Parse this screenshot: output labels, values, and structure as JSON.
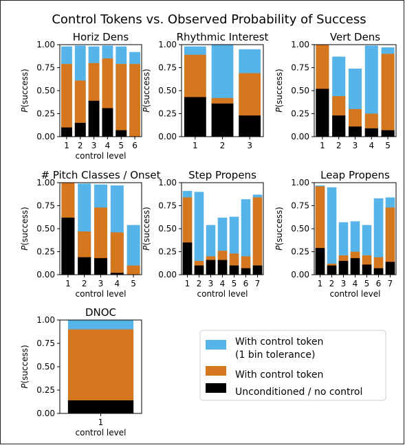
{
  "figure": {
    "title": "Control Tokens vs. Observed Probability of Success"
  },
  "colors": {
    "tolerance": "#56b4e9",
    "token": "#d4771f",
    "unconditioned": "#000000"
  },
  "legend": {
    "placement": "lower-right",
    "entries": [
      {
        "lines": [
          "With control token",
          "(1 bin tolerance)"
        ],
        "color": "#56b4e9"
      },
      {
        "lines": [
          "With control token"
        ],
        "color": "#d4771f"
      },
      {
        "lines": [
          "Unconditioned / no control"
        ],
        "color": "#000000"
      }
    ]
  },
  "chart_data": [
    {
      "type": "bar",
      "stacking": "overlay",
      "title": "Horiz Dens",
      "categories": [
        "1",
        "2",
        "3",
        "4",
        "5",
        "6"
      ],
      "xlabel": "control level",
      "ylabel": "P(success)",
      "ylim": [
        0,
        1
      ],
      "yticks": [
        "0.00",
        "0.25",
        "0.50",
        "0.75",
        "1.00"
      ],
      "series": [
        {
          "name": "With control token (1 bin tolerance)",
          "values": [
            0.98,
            0.99,
            0.98,
            0.99,
            0.98,
            0.92
          ]
        },
        {
          "name": "With control token",
          "values": [
            0.79,
            0.61,
            0.8,
            0.85,
            0.79,
            0.79
          ]
        },
        {
          "name": "Unconditioned / no control",
          "values": [
            0.1,
            0.15,
            0.39,
            0.31,
            0.07,
            0.0
          ]
        }
      ]
    },
    {
      "type": "bar",
      "stacking": "overlay",
      "title": "Rhythmic Interest",
      "categories": [
        "1",
        "2",
        "3"
      ],
      "xlabel": "",
      "ylabel": "P(success)",
      "ylim": [
        0,
        1
      ],
      "yticks": [
        "0.00",
        "0.25",
        "0.50",
        "0.75",
        "1.00"
      ],
      "series": [
        {
          "name": "With control token (1 bin tolerance)",
          "values": [
            0.98,
            1.0,
            0.95
          ]
        },
        {
          "name": "With control token",
          "values": [
            0.89,
            0.42,
            0.69
          ]
        },
        {
          "name": "Unconditioned / no control",
          "values": [
            0.43,
            0.36,
            0.23
          ]
        }
      ]
    },
    {
      "type": "bar",
      "stacking": "overlay",
      "title": "Vert Dens",
      "categories": [
        "1",
        "2",
        "3",
        "4",
        "5"
      ],
      "xlabel": "",
      "ylabel": "P(success)",
      "ylim": [
        0,
        1
      ],
      "yticks": [
        "0.00",
        "0.25",
        "0.50",
        "0.75",
        "1.00"
      ],
      "series": [
        {
          "name": "With control token (1 bin tolerance)",
          "values": [
            1.0,
            0.87,
            0.74,
            0.99,
            0.97
          ]
        },
        {
          "name": "With control token",
          "values": [
            1.0,
            0.44,
            0.3,
            0.25,
            0.9
          ]
        },
        {
          "name": "Unconditioned / no control",
          "values": [
            0.52,
            0.23,
            0.11,
            0.09,
            0.07
          ]
        }
      ]
    },
    {
      "type": "bar",
      "stacking": "overlay",
      "title": "# Pitch Classes / Onset",
      "categories": [
        "1",
        "2",
        "3",
        "4",
        "5"
      ],
      "xlabel": "control level",
      "ylabel": "P(success)",
      "ylim": [
        0,
        1
      ],
      "yticks": [
        "0.00",
        "0.25",
        "0.50",
        "0.75",
        "1.00"
      ],
      "series": [
        {
          "name": "With control token (1 bin tolerance)",
          "values": [
            1.0,
            0.99,
            0.98,
            0.97,
            0.54
          ]
        },
        {
          "name": "With control token",
          "values": [
            1.0,
            0.47,
            0.73,
            0.46,
            0.1
          ]
        },
        {
          "name": "Unconditioned / no control",
          "values": [
            0.62,
            0.19,
            0.18,
            0.02,
            0.0
          ]
        }
      ]
    },
    {
      "type": "bar",
      "stacking": "overlay",
      "title": "Step Propens",
      "categories": [
        "1",
        "2",
        "3",
        "4",
        "5",
        "6",
        "7"
      ],
      "xlabel": "control level",
      "ylabel": "P(success)",
      "ylim": [
        0,
        1
      ],
      "yticks": [
        "0.00",
        "0.25",
        "0.50",
        "0.75",
        "1.00"
      ],
      "series": [
        {
          "name": "With control token (1 bin tolerance)",
          "values": [
            0.91,
            0.9,
            0.54,
            0.62,
            0.63,
            0.82,
            0.87
          ]
        },
        {
          "name": "With control token",
          "values": [
            0.84,
            0.15,
            0.2,
            0.26,
            0.23,
            0.2,
            0.84
          ]
        },
        {
          "name": "Unconditioned / no control",
          "values": [
            0.35,
            0.1,
            0.16,
            0.16,
            0.1,
            0.07,
            0.1
          ]
        }
      ]
    },
    {
      "type": "bar",
      "stacking": "overlay",
      "title": "Leap Propens",
      "categories": [
        "1",
        "2",
        "3",
        "4",
        "5",
        "6",
        "7"
      ],
      "xlabel": "control level",
      "ylabel": "P(success)",
      "ylim": [
        0,
        1
      ],
      "yticks": [
        "0.00",
        "0.25",
        "0.50",
        "0.75",
        "1.00"
      ],
      "series": [
        {
          "name": "With control token (1 bin tolerance)",
          "values": [
            0.97,
            0.95,
            0.57,
            0.58,
            0.54,
            0.83,
            0.84
          ]
        },
        {
          "name": "With control token",
          "values": [
            0.96,
            0.12,
            0.21,
            0.25,
            0.21,
            0.19,
            0.73
          ]
        },
        {
          "name": "Unconditioned / no control",
          "values": [
            0.29,
            0.1,
            0.15,
            0.18,
            0.11,
            0.07,
            0.14
          ]
        }
      ]
    },
    {
      "type": "bar",
      "stacking": "overlay",
      "title": "DNOC",
      "categories": [
        "1"
      ],
      "xlabel": "control level",
      "ylabel": "P(success)",
      "ylim": [
        0,
        1
      ],
      "yticks": [
        "0.00",
        "0.25",
        "0.50",
        "0.75",
        "1.00"
      ],
      "series": [
        {
          "name": "With control token (1 bin tolerance)",
          "values": [
            1.0
          ]
        },
        {
          "name": "With control token",
          "values": [
            0.9
          ]
        },
        {
          "name": "Unconditioned / no control",
          "values": [
            0.14
          ]
        }
      ]
    }
  ]
}
